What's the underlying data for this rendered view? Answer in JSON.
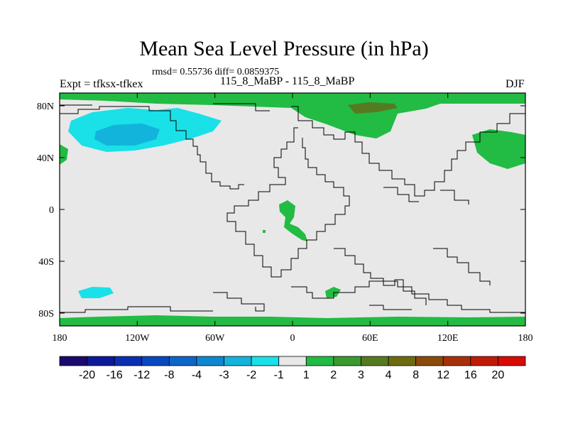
{
  "title": "Mean Sea Level Pressure (in hPa)",
  "stats": "rmsd= 0.55736 diff= 0.0859375",
  "left_label": "Expt = tfksx-tfkex",
  "center_label": "115_8_MaBP - 115_8_MaBP",
  "right_label": "DJF",
  "x_ticks": [
    "180",
    "120W",
    "60W",
    "0",
    "60E",
    "120E",
    "180"
  ],
  "y_ticks": [
    "80N",
    "40N",
    "0",
    "40S",
    "80S"
  ],
  "colorbar": {
    "levels": [
      "-20",
      "-16",
      "-12",
      "-8",
      "-4",
      "-3",
      "-2",
      "-1",
      "1",
      "2",
      "3",
      "4",
      "8",
      "12",
      "16",
      "20"
    ],
    "colors": [
      "#1a0a6e",
      "#0c1a9a",
      "#0a2fb0",
      "#0a48c0",
      "#0c66c8",
      "#0f86d0",
      "#13b4dc",
      "#1ae0e8",
      "#e8e8e8",
      "#22bb44",
      "#3a9a30",
      "#557a20",
      "#6e6a10",
      "#8c4a0a",
      "#a83008",
      "#c01a06",
      "#d80a04"
    ]
  },
  "colors": {
    "background_field": "#e8e8e8",
    "positive_light": "#22bb44",
    "positive_mid": "#557a20",
    "negative_light": "#1ae0e8",
    "negative_mid": "#13b4dc",
    "negative_dark": "#0f86d0"
  }
}
